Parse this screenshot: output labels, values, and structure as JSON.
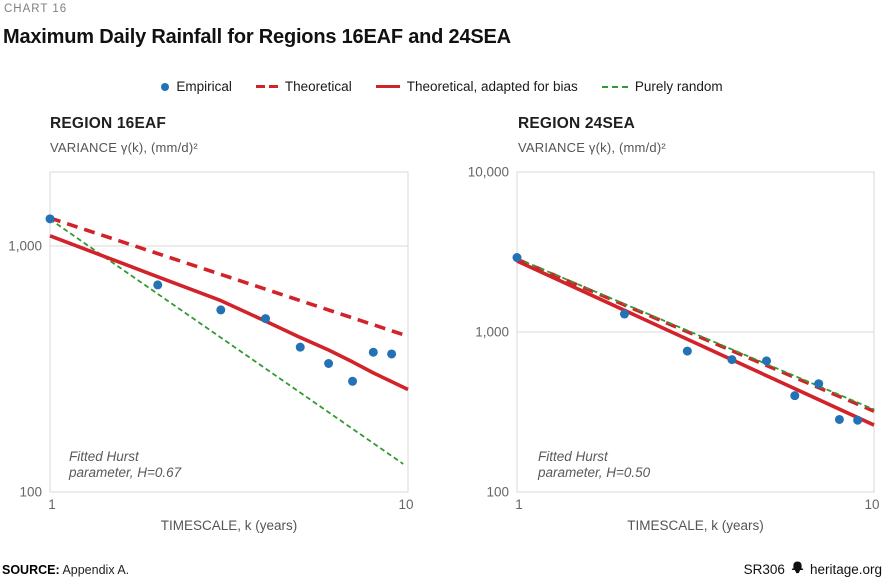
{
  "chart_label": "CHART 16",
  "title": "Maximum Daily Rainfall for Regions 16EAF and 24SEA",
  "legend": [
    {
      "label": "Empirical",
      "marker": "dot",
      "color": "#2272B5"
    },
    {
      "label": "Theoretical",
      "marker": "dash",
      "color": "#D2232A"
    },
    {
      "label": "Theoretical, adapted for bias",
      "marker": "solid",
      "color": "#D2232A"
    },
    {
      "label": "Purely random",
      "marker": "dash-sm",
      "color": "#339933"
    }
  ],
  "colors": {
    "blue": "#2272B5",
    "red": "#D2232A",
    "green": "#339933",
    "grid": "#D9D9D9",
    "tick_text": "#666666",
    "axis_text": "#555555"
  },
  "source": {
    "prefix": "SOURCE:",
    "text": " Appendix A."
  },
  "footer": {
    "report": "SR306",
    "site": "heritage.org"
  },
  "chart_data": [
    {
      "type": "scatter",
      "panel_title": "REGION 16EAF",
      "y_axis_title": "VARIANCE γ(k), (mm/d)²",
      "xlabel": "TIMESCALE, k (years)",
      "xlim": [
        1,
        10
      ],
      "ylim": [
        100,
        2000
      ],
      "xticks": [
        1,
        10
      ],
      "yticks": [
        100,
        1000
      ],
      "grid": "horizontal-log",
      "legend_position": "top-shared",
      "annotation": {
        "line1": "Fitted Hurst",
        "line2": "parameter, H=0.67"
      },
      "series": [
        {
          "name": "Theoretical",
          "type": "line",
          "style": "dashed",
          "color": "#D2232A",
          "x": [
            1,
            10
          ],
          "y": [
            1300,
            430
          ]
        },
        {
          "name": "Purely random",
          "type": "line",
          "style": "dashed-small",
          "color": "#339933",
          "x": [
            1,
            9.7
          ],
          "y": [
            1285,
            130
          ]
        },
        {
          "name": "Theoretical, adapted for bias",
          "type": "line",
          "style": "solid",
          "color": "#D2232A",
          "x": [
            1,
            2,
            3,
            4,
            5,
            6,
            7,
            8,
            9,
            10
          ],
          "y": [
            1100,
            750,
            600,
            495,
            425,
            378,
            338,
            305,
            281,
            261
          ]
        },
        {
          "name": "Empirical",
          "type": "scatter",
          "color": "#2272B5",
          "x": [
            1,
            2,
            3,
            4,
            5,
            6,
            7,
            8,
            9
          ],
          "y": [
            1290,
            695,
            550,
            507,
            388,
            333,
            282,
            370,
            364
          ]
        }
      ]
    },
    {
      "type": "scatter",
      "panel_title": "REGION 24SEA",
      "y_axis_title": "VARIANCE γ(k), (mm/d)²",
      "xlabel": "TIMESCALE, k (years)",
      "xlim": [
        1,
        10
      ],
      "ylim": [
        100,
        10000
      ],
      "xticks": [
        1,
        10
      ],
      "yticks": [
        100,
        1000,
        10000
      ],
      "grid": "horizontal-log",
      "legend_position": "top-shared",
      "annotation": {
        "line1": "Fitted Hurst",
        "line2": "parameter, H=0.50"
      },
      "series": [
        {
          "name": "Theoretical",
          "type": "line",
          "style": "dashed",
          "color": "#D2232A",
          "x": [
            1,
            10
          ],
          "y": [
            2850,
            320
          ]
        },
        {
          "name": "Purely random",
          "type": "line",
          "style": "dashed-small",
          "color": "#339933",
          "x": [
            1,
            10
          ],
          "y": [
            2880,
            328
          ]
        },
        {
          "name": "Theoretical, adapted for bias",
          "type": "line",
          "style": "solid",
          "color": "#D2232A",
          "x": [
            1,
            10
          ],
          "y": [
            2780,
            262
          ]
        },
        {
          "name": "Empirical",
          "type": "scatter",
          "color": "#2272B5",
          "x": [
            1,
            2,
            3,
            4,
            5,
            6,
            7,
            8,
            9
          ],
          "y": [
            2920,
            1295,
            760,
            672,
            660,
            400,
            475,
            284,
            281
          ]
        }
      ]
    }
  ]
}
